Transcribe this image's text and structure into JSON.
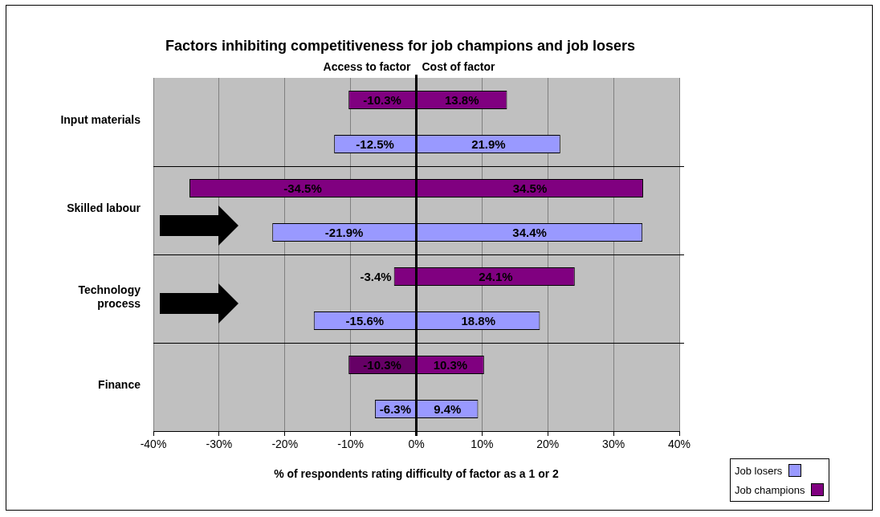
{
  "chart_data": {
    "type": "bar",
    "orientation": "horizontal",
    "stacked": true,
    "title": "Factors inhibiting competitiveness for job champions and job losers",
    "xlabel": "% of respondents rating difficulty of factor as a 1 or 2",
    "annotations": [
      "Access to factor",
      "Cost of factor"
    ],
    "categories": [
      "Input materials",
      null,
      "Skilled labour",
      null,
      "Technology process",
      null,
      "Finance",
      null
    ],
    "series": [
      {
        "name": "Job losers",
        "color": "#9999ff",
        "values": [
          null,
          21.9,
          null,
          34.4,
          null,
          18.8,
          null,
          9.4
        ],
        "value_labels": [
          null,
          "21.9%",
          null,
          "34.4%",
          null,
          "18.8%",
          null,
          "9.4%"
        ]
      },
      {
        "color": "#9999ff",
        "values": [
          null,
          -12.5,
          null,
          -21.9,
          null,
          -15.6,
          null,
          -6.3
        ],
        "value_labels": [
          null,
          "-12.5%",
          null,
          "-21.9%",
          null,
          "-15.6%",
          null,
          "-6.3%"
        ]
      },
      {
        "name": "Job champions",
        "color": "#800080",
        "values": [
          13.8,
          null,
          34.5,
          null,
          24.1,
          null,
          10.3,
          null
        ],
        "value_labels": [
          "13.8%",
          null,
          "34.5%",
          null,
          "24.1%",
          null,
          "10.3%",
          null
        ]
      },
      {
        "color": "#800080",
        "colors": [
          "#800080",
          null,
          "#800080",
          null,
          "#800080",
          null,
          "#660066",
          null
        ],
        "values": [
          -10.3,
          null,
          -34.5,
          null,
          -3.4,
          null,
          -10.3,
          null
        ],
        "value_labels": [
          "-10.3%",
          null,
          "-34.5%",
          null,
          "-3.4%",
          null,
          "-10.3%",
          null
        ]
      }
    ],
    "xlim": [
      -40,
      40
    ],
    "xticks": [
      {
        "value": -40,
        "label": "-40%"
      },
      {
        "value": -30,
        "label": "-30%"
      },
      {
        "value": -20,
        "label": "-20%"
      },
      {
        "value": -10,
        "label": "-10%"
      },
      {
        "value": 0,
        "label": "0%"
      },
      {
        "value": 10,
        "label": "10%"
      },
      {
        "value": 20,
        "label": "20%"
      },
      {
        "value": 30,
        "label": "30%"
      },
      {
        "value": 40,
        "label": "40%"
      }
    ],
    "grid": true,
    "legend": "bottom right"
  }
}
